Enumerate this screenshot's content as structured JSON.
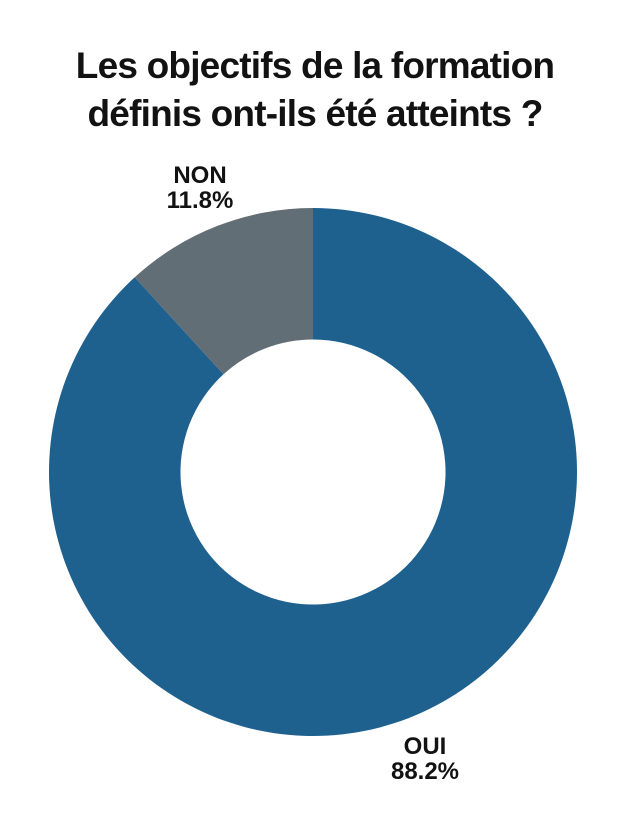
{
  "page": {
    "background": "#ffffff"
  },
  "title_lines": {
    "line1": "Les objectifs de la formation",
    "line2": "définis ont-ils été atteints ?"
  },
  "chart_data": {
    "type": "pie",
    "subtype": "donut",
    "title": "Les objectifs de la formation définis ont-ils été atteints ?",
    "start_angle_deg": 0,
    "direction": "clockwise",
    "inner_radius_ratio": 0.502,
    "legend_position": "none",
    "grid": false,
    "label_color": "#121212",
    "hole_color": "#ffffff",
    "slices": [
      {
        "label": "OUI",
        "value": 88.2,
        "pct_label": "88.2%",
        "color": "#1F618E"
      },
      {
        "label": "NON",
        "value": 11.8,
        "pct_label": "11.8%",
        "color": "#626E75"
      }
    ]
  }
}
